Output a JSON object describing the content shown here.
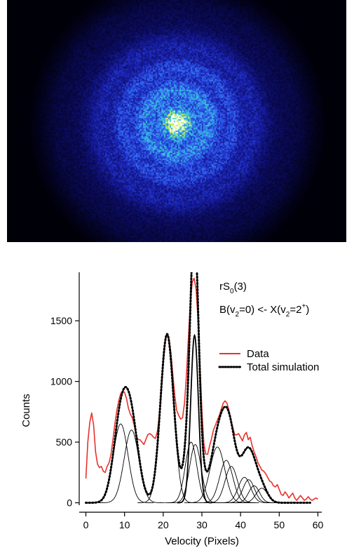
{
  "image_panel": {
    "description_icon": "velocity-map-image",
    "colormap": [
      "#000008",
      "#0b0b5c",
      "#1a22b0",
      "#2f5ff0",
      "#37a6e8",
      "#3fd7c8",
      "#c8f040",
      "#ffffff"
    ]
  },
  "chart_data": {
    "type": "line",
    "title": "",
    "xlabel": "Velocity (Pixels)",
    "ylabel": "Counts",
    "xlim": [
      -1,
      61
    ],
    "ylim": [
      -20,
      1900
    ],
    "x_ticks": [
      0,
      10,
      20,
      30,
      40,
      50,
      60
    ],
    "y_ticks": [
      0,
      500,
      1000,
      1500
    ],
    "x_tick_labels": [
      "0",
      "10",
      "20",
      "30",
      "40",
      "50",
      "60"
    ],
    "y_tick_labels": [
      "0",
      "500",
      "1000",
      "1500"
    ],
    "annotations": {
      "line1_main": "rS",
      "line1_sub": "0",
      "line1_tail": "(3)",
      "line2_a": "B(v",
      "line2_sub1": "2",
      "line2_b": "=0) <- X(v",
      "line2_sub2": "2",
      "line2_c": "=2",
      "line2_sup": "+",
      "line2_d": ")"
    },
    "legend": {
      "position": "right",
      "entries": [
        "Data",
        "Total simulation"
      ]
    },
    "colors": {
      "data": "#e8322b",
      "simulation": "#000000",
      "component": "#000000"
    },
    "series": [
      {
        "name": "Data",
        "style": "red-line",
        "x": [
          0,
          0.5,
          1,
          1.5,
          2,
          2.5,
          3,
          3.5,
          4,
          4.5,
          5,
          5.5,
          6,
          6.5,
          7,
          7.5,
          8,
          8.5,
          9,
          9.5,
          10,
          10.5,
          11,
          11.5,
          12,
          12.5,
          13,
          13.5,
          14,
          14.5,
          15,
          15.5,
          16,
          16.5,
          17,
          17.5,
          18,
          18.5,
          19,
          19.5,
          20,
          20.5,
          21,
          21.5,
          22,
          22.5,
          23,
          23.5,
          24,
          24.5,
          25,
          25.5,
          26,
          26.5,
          27,
          27.5,
          28,
          28.5,
          29,
          29.5,
          30,
          30.5,
          31,
          31.5,
          32,
          32.5,
          33,
          33.5,
          34,
          34.5,
          35,
          35.5,
          36,
          36.5,
          37,
          37.5,
          38,
          38.5,
          39,
          39.5,
          40,
          40.5,
          41,
          41.5,
          42,
          42.5,
          43,
          43.5,
          44,
          44.5,
          45,
          45.5,
          46,
          46.5,
          47,
          47.5,
          48,
          48.5,
          49,
          49.5,
          50,
          50.5,
          51,
          51.5,
          52,
          52.5,
          53,
          53.5,
          54,
          54.5,
          55,
          55.5,
          56,
          56.5,
          57,
          57.5,
          58,
          58.5,
          59,
          59.5,
          60
        ],
        "y": [
          200,
          500,
          660,
          740,
          640,
          420,
          320,
          290,
          300,
          260,
          250,
          300,
          330,
          400,
          520,
          650,
          760,
          840,
          900,
          920,
          910,
          860,
          780,
          730,
          700,
          640,
          560,
          520,
          520,
          500,
          480,
          520,
          560,
          570,
          560,
          540,
          530,
          590,
          720,
          920,
          1150,
          1330,
          1390,
          1350,
          1230,
          1050,
          880,
          760,
          720,
          690,
          700,
          820,
          1050,
          1350,
          1640,
          1820,
          1850,
          1760,
          1510,
          1140,
          760,
          490,
          400,
          400,
          470,
          530,
          600,
          640,
          680,
          720,
          770,
          820,
          840,
          820,
          760,
          680,
          620,
          560,
          560,
          570,
          540,
          510,
          560,
          580,
          520,
          540,
          470,
          420,
          380,
          330,
          300,
          270,
          260,
          240,
          210,
          180,
          170,
          140,
          130,
          150,
          110,
          70,
          60,
          90,
          70,
          40,
          60,
          80,
          40,
          20,
          40,
          60,
          40,
          20,
          30,
          50,
          30,
          20,
          30,
          40,
          30
        ]
      }
    ],
    "total_simulation": {
      "name": "Total simulation",
      "style": "black-dotted",
      "x_start": 0,
      "x_end": 58,
      "step": 0.5
    },
    "components": [
      {
        "center": 9.0,
        "amplitude": 650,
        "width": 1.9
      },
      {
        "center": 11.8,
        "amplitude": 600,
        "width": 1.9
      },
      {
        "center": 21.0,
        "amplitude": 1390,
        "width": 1.7
      },
      {
        "center": 27.2,
        "amplitude": 500,
        "width": 1.5
      },
      {
        "center": 28.3,
        "amplitude": 480,
        "width": 1.5
      },
      {
        "center": 28.1,
        "amplitude": 1380,
        "width": 1.0
      },
      {
        "center": 34.0,
        "amplitude": 460,
        "width": 1.9
      },
      {
        "center": 36.3,
        "amplitude": 350,
        "width": 1.7
      },
      {
        "center": 37.6,
        "amplitude": 300,
        "width": 1.6
      },
      {
        "center": 41.0,
        "amplitude": 210,
        "width": 1.6
      },
      {
        "center": 42.1,
        "amplitude": 190,
        "width": 1.5
      },
      {
        "center": 43.5,
        "amplitude": 140,
        "width": 1.4
      },
      {
        "center": 45.5,
        "amplitude": 120,
        "width": 1.5
      }
    ]
  }
}
